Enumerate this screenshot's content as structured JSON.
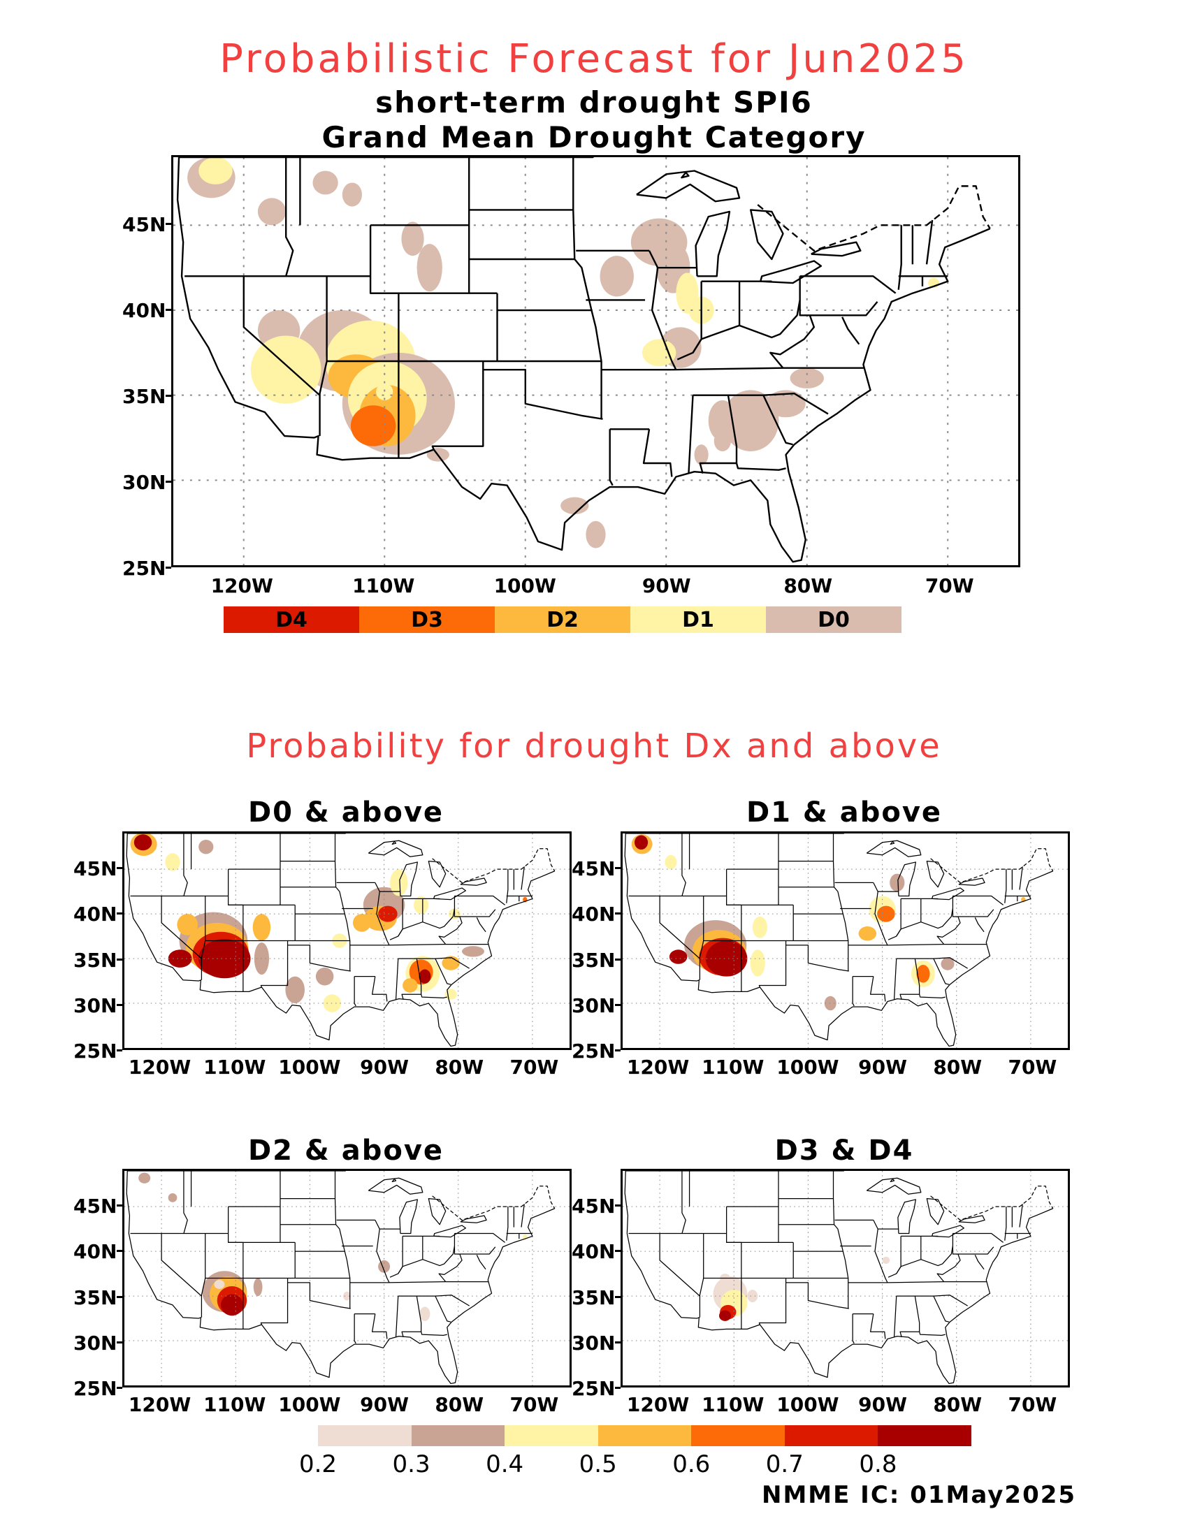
{
  "header": {
    "title": "Probabilistic Forecast for Jun2025",
    "subtitle1": "short-term drought SPI6",
    "subtitle2": "Grand Mean Drought Category"
  },
  "axes": {
    "lat_labels": [
      "45N",
      "40N",
      "35N",
      "30N",
      "25N"
    ],
    "lon_labels": [
      "120W",
      "110W",
      "100W",
      "90W",
      "80W",
      "70W"
    ]
  },
  "category_legend": [
    {
      "label": "D4",
      "color": "#dc1a00"
    },
    {
      "label": "D3",
      "color": "#fd6a08"
    },
    {
      "label": "D2",
      "color": "#fdb83e"
    },
    {
      "label": "D1",
      "color": "#fff4a6"
    },
    {
      "label": "D0",
      "color": "#d9bcae"
    }
  ],
  "section_title": "Probability for drought Dx and above",
  "panels": [
    {
      "title": "D0 & above"
    },
    {
      "title": "D1 & above"
    },
    {
      "title": "D2 & above"
    },
    {
      "title": "D3 & D4"
    }
  ],
  "prob_legend": {
    "colors": [
      "#efdcd3",
      "#c9a394",
      "#fff4a6",
      "#fdb83e",
      "#fd6a08",
      "#dc1a00",
      "#a80000"
    ],
    "labels": [
      "0.2",
      "0.3",
      "0.4",
      "0.5",
      "0.6",
      "0.7",
      "0.8"
    ]
  },
  "credit": "NMME IC: 01May2025"
}
